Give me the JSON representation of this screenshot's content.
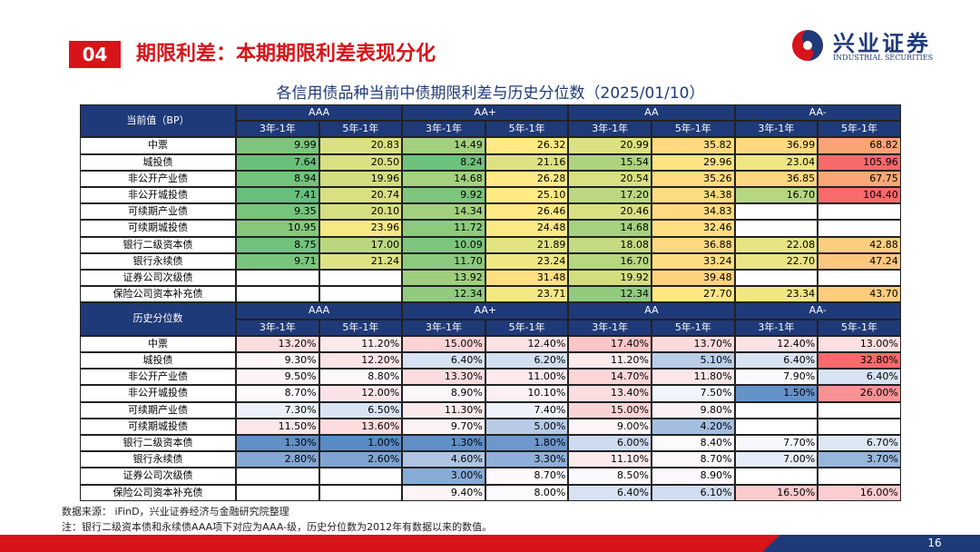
{
  "header": {
    "section": "04",
    "title": "期限利差：本期期限利差表现分化",
    "logo_cn": "兴业证券",
    "logo_en": "INDUSTRIAL SECURITIES"
  },
  "table_title": "各信用债品种当前中债期限利差与历史分位数（2025/01/10）",
  "tables": [
    {
      "corner": "当前值（BP）",
      "groups": [
        "AAA",
        "AA+",
        "AA",
        "AA-"
      ],
      "subheaders": [
        "3年-1年",
        "5年-1年",
        "3年-1年",
        "5年-1年",
        "3年-1年",
        "5年-1年",
        "3年-1年",
        "5年-1年"
      ],
      "rows": [
        {
          "label": "中票",
          "cells": [
            "9.99",
            "20.83",
            "14.49",
            "26.32",
            "20.99",
            "35.82",
            "36.99",
            "68.82"
          ]
        },
        {
          "label": "城投债",
          "cells": [
            "7.64",
            "20.50",
            "8.24",
            "21.16",
            "15.54",
            "29.96",
            "23.04",
            "105.96"
          ]
        },
        {
          "label": "非公开产业债",
          "cells": [
            "8.94",
            "19.96",
            "14.68",
            "26.28",
            "20.54",
            "35.26",
            "36.85",
            "67.75"
          ]
        },
        {
          "label": "非公开城投债",
          "cells": [
            "7.41",
            "20.74",
            "9.92",
            "25.10",
            "17.20",
            "34.38",
            "16.70",
            "104.40"
          ]
        },
        {
          "label": "可续期产业债",
          "cells": [
            "9.35",
            "20.10",
            "14.34",
            "26.46",
            "20.46",
            "34.83",
            null,
            null
          ]
        },
        {
          "label": "可续期城投债",
          "cells": [
            "10.95",
            "23.96",
            "11.72",
            "24.48",
            "14.68",
            "32.46",
            null,
            null
          ]
        },
        {
          "label": "银行二级资本债",
          "cells": [
            "8.75",
            "17.00",
            "10.09",
            "21.89",
            "18.08",
            "36.88",
            "22.08",
            "42.88"
          ]
        },
        {
          "label": "银行永续债",
          "cells": [
            "9.71",
            "21.24",
            "11.70",
            "23.24",
            "16.70",
            "33.24",
            "22.70",
            "47.24"
          ]
        },
        {
          "label": "证券公司次级债",
          "cells": [
            null,
            null,
            "13.92",
            "31.48",
            "19.92",
            "39.48",
            null,
            null
          ]
        },
        {
          "label": "保险公司资本补充债",
          "cells": [
            null,
            null,
            "12.34",
            "23.71",
            "12.34",
            "27.70",
            "23.34",
            "43.70"
          ]
        }
      ]
    },
    {
      "corner": "历史分位数",
      "groups": [
        "AAA",
        "AA+",
        "AA",
        "AA-"
      ],
      "subheaders": [
        "3年-1年",
        "5年-1年",
        "3年-1年",
        "5年-1年",
        "3年-1年",
        "5年-1年",
        "3年-1年",
        "5年-1年"
      ],
      "rows": [
        {
          "label": "中票",
          "cells": [
            "13.20%",
            "11.20%",
            "15.00%",
            "12.40%",
            "17.40%",
            "13.70%",
            "12.40%",
            "13.00%"
          ]
        },
        {
          "label": "城投债",
          "cells": [
            "9.30%",
            "12.20%",
            "6.40%",
            "6.20%",
            "11.20%",
            "5.10%",
            "6.40%",
            "32.80%"
          ]
        },
        {
          "label": "非公开产业债",
          "cells": [
            "9.50%",
            "8.80%",
            "13.30%",
            "11.00%",
            "14.70%",
            "11.80%",
            "7.90%",
            "6.40%"
          ]
        },
        {
          "label": "非公开城投债",
          "cells": [
            "8.70%",
            "12.00%",
            "8.90%",
            "10.10%",
            "13.40%",
            "7.50%",
            "1.50%",
            "26.00%"
          ]
        },
        {
          "label": "可续期产业债",
          "cells": [
            "7.30%",
            "6.50%",
            "11.30%",
            "7.40%",
            "15.00%",
            "9.80%",
            null,
            null
          ]
        },
        {
          "label": "可续期城投债",
          "cells": [
            "11.50%",
            "13.60%",
            "9.70%",
            "5.00%",
            "9.00%",
            "4.20%",
            null,
            null
          ]
        },
        {
          "label": "银行二级资本债",
          "cells": [
            "1.30%",
            "1.00%",
            "1.30%",
            "1.80%",
            "6.00%",
            "8.40%",
            "7.70%",
            "6.70%"
          ]
        },
        {
          "label": "银行永续债",
          "cells": [
            "2.80%",
            "2.60%",
            "4.60%",
            "3.30%",
            "11.10%",
            "8.70%",
            "7.00%",
            "3.70%"
          ]
        },
        {
          "label": "证券公司次级债",
          "cells": [
            null,
            null,
            "3.00%",
            "8.70%",
            "8.50%",
            "8.90%",
            null,
            null
          ]
        },
        {
          "label": "保险公司资本补充债",
          "cells": [
            null,
            null,
            "9.40%",
            "8.00%",
            "6.40%",
            "6.10%",
            "16.50%",
            "16.00%"
          ]
        }
      ]
    }
  ],
  "notes": [
    "数据来源： iFinD，兴业证券经济与金融研究院整理",
    "注：银行二级资本债和永续债AAA项下对应为AAA-级，历史分位数为2012年有数据以来的数值。"
  ],
  "page_number": "16"
}
